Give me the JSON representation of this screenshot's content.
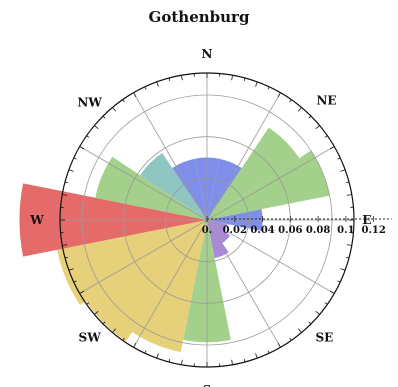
{
  "chart_data": {
    "type": "wind-rose",
    "title": "Gothenburg",
    "directions": [
      "N",
      "NE",
      "E",
      "SE",
      "S",
      "SW",
      "W",
      "NW"
    ],
    "radial_ticks": [
      "0.",
      "0.02",
      "0.04",
      "0.06",
      "0.08",
      "0.1",
      "0.12"
    ],
    "radial_tick_values": [
      0,
      0.02,
      0.04,
      0.06,
      0.08,
      0.1,
      0.12
    ],
    "rmax": 0.12,
    "sector_width_deg": 22.5,
    "grid": true,
    "sectors": [
      {
        "bearing": 0,
        "value": 0.045,
        "color": "#7f8ee8"
      },
      {
        "bearing": 22.5,
        "value": 0.045,
        "color": "#7f8ee8"
      },
      {
        "bearing": 45,
        "value": 0.08,
        "color": "#a3d08b"
      },
      {
        "bearing": 67.5,
        "value": 0.09,
        "color": "#a3d08b"
      },
      {
        "bearing": 90,
        "value": 0.04,
        "color": "#7f8ee8"
      },
      {
        "bearing": 112.5,
        "value": 0.015,
        "color": "#a98ad8"
      },
      {
        "bearing": 135,
        "value": 0.02,
        "color": "#a98ad8"
      },
      {
        "bearing": 157.5,
        "value": 0.028,
        "color": "#a98ad8"
      },
      {
        "bearing": 180,
        "value": 0.088,
        "color": "#a3d08b"
      },
      {
        "bearing": 202.5,
        "value": 0.097,
        "color": "#e7d07a"
      },
      {
        "bearing": 225,
        "value": 0.105,
        "color": "#e7d07a"
      },
      {
        "bearing": 247.5,
        "value": 0.11,
        "color": "#e7d07a"
      },
      {
        "bearing": 270,
        "value": 0.135,
        "color": "#e56a6a"
      },
      {
        "bearing": 292.5,
        "value": 0.082,
        "color": "#a3d08b"
      },
      {
        "bearing": 315,
        "value": 0.058,
        "color": "#8fc6c2"
      },
      {
        "bearing": 337.5,
        "value": 0.045,
        "color": "#7f8ee8"
      }
    ]
  }
}
